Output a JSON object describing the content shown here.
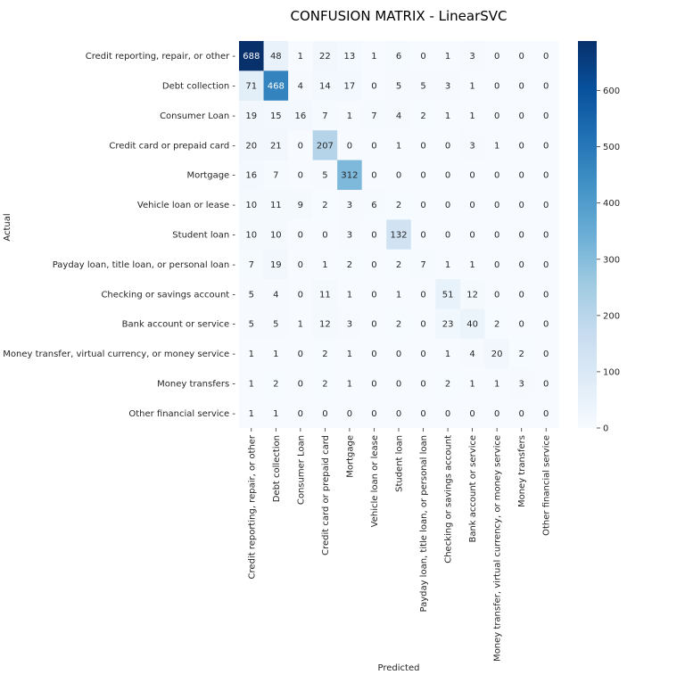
{
  "chart_data": {
    "type": "heatmap",
    "title": "CONFUSION MATRIX - LinearSVC",
    "xlabel": "Predicted",
    "ylabel": "Actual",
    "colormap": "Blues",
    "colorbar": {
      "range": [
        0,
        688
      ],
      "ticks": [
        0,
        100,
        200,
        300,
        400,
        500,
        600
      ]
    },
    "row_labels": [
      "Credit reporting, repair, or other",
      "Debt collection",
      "Consumer Loan",
      "Credit card or prepaid card",
      "Mortgage",
      "Vehicle loan or lease",
      "Student loan",
      "Payday loan, title loan, or personal loan",
      "Checking or savings account",
      "Bank account or service",
      "Money transfer, virtual currency, or money service",
      "Money transfers",
      "Other financial service"
    ],
    "col_labels": [
      "Credit reporting, repair, or other",
      "Debt collection",
      "Consumer Loan",
      "Credit card or prepaid card",
      "Mortgage",
      "Vehicle loan or lease",
      "Student loan",
      "Payday loan, title loan, or personal loan",
      "Checking or savings account",
      "Bank account or service",
      "Money transfer, virtual currency, or money service",
      "Money transfers",
      "Other financial service"
    ],
    "values": [
      [
        688,
        48,
        1,
        22,
        13,
        1,
        6,
        0,
        1,
        3,
        0,
        0,
        0
      ],
      [
        71,
        468,
        4,
        14,
        17,
        0,
        5,
        5,
        3,
        1,
        0,
        0,
        0
      ],
      [
        19,
        15,
        16,
        7,
        1,
        7,
        4,
        2,
        1,
        1,
        0,
        0,
        0
      ],
      [
        20,
        21,
        0,
        207,
        0,
        0,
        1,
        0,
        0,
        3,
        1,
        0,
        0
      ],
      [
        16,
        7,
        0,
        5,
        312,
        0,
        0,
        0,
        0,
        0,
        0,
        0,
        0
      ],
      [
        10,
        11,
        9,
        2,
        3,
        6,
        2,
        0,
        0,
        0,
        0,
        0,
        0
      ],
      [
        10,
        10,
        0,
        0,
        3,
        0,
        132,
        0,
        0,
        0,
        0,
        0,
        0
      ],
      [
        7,
        19,
        0,
        1,
        2,
        0,
        2,
        7,
        1,
        1,
        0,
        0,
        0
      ],
      [
        5,
        4,
        0,
        11,
        1,
        0,
        1,
        0,
        51,
        12,
        0,
        0,
        0
      ],
      [
        5,
        5,
        1,
        12,
        3,
        0,
        2,
        0,
        23,
        40,
        2,
        0,
        0
      ],
      [
        1,
        1,
        0,
        2,
        1,
        0,
        0,
        0,
        1,
        4,
        20,
        2,
        0
      ],
      [
        1,
        2,
        0,
        2,
        1,
        0,
        0,
        0,
        2,
        1,
        1,
        3,
        0
      ],
      [
        1,
        1,
        0,
        0,
        0,
        0,
        0,
        0,
        0,
        0,
        0,
        0,
        0
      ]
    ]
  }
}
